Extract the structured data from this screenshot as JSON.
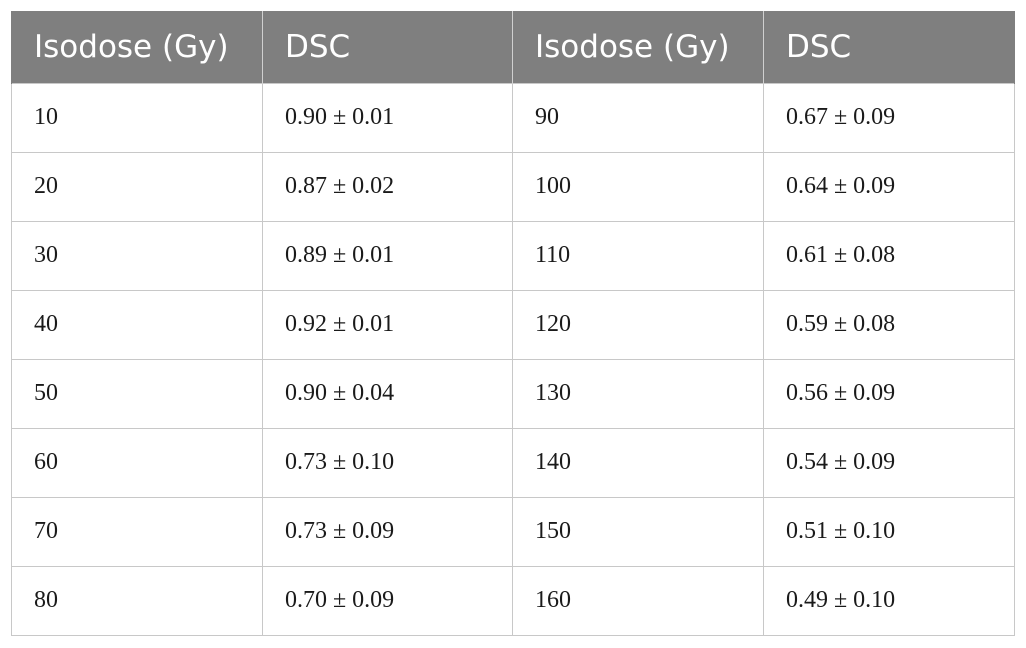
{
  "table": {
    "headers": [
      "Isodose (Gy)",
      "DSC",
      "Isodose (Gy)",
      "DSC"
    ],
    "rows": [
      [
        "10",
        "0.90 ± 0.01",
        "90",
        "0.67 ± 0.09"
      ],
      [
        "20",
        "0.87 ± 0.02",
        "100",
        "0.64 ± 0.09"
      ],
      [
        "30",
        "0.89 ± 0.01",
        "110",
        "0.61 ± 0.08"
      ],
      [
        "40",
        "0.92 ± 0.01",
        "120",
        "0.59 ± 0.08"
      ],
      [
        "50",
        "0.90 ± 0.04",
        "130",
        "0.56 ± 0.09"
      ],
      [
        "60",
        "0.73 ± 0.10",
        "140",
        "0.54 ± 0.09"
      ],
      [
        "70",
        "0.73 ± 0.09",
        "150",
        "0.51 ± 0.10"
      ],
      [
        "80",
        "0.70 ± 0.09",
        "160",
        "0.49 ± 0.10"
      ]
    ]
  },
  "colors": {
    "header_background": "#7f7f7f",
    "header_text": "#ffffff",
    "border": "#c8c8c8"
  }
}
